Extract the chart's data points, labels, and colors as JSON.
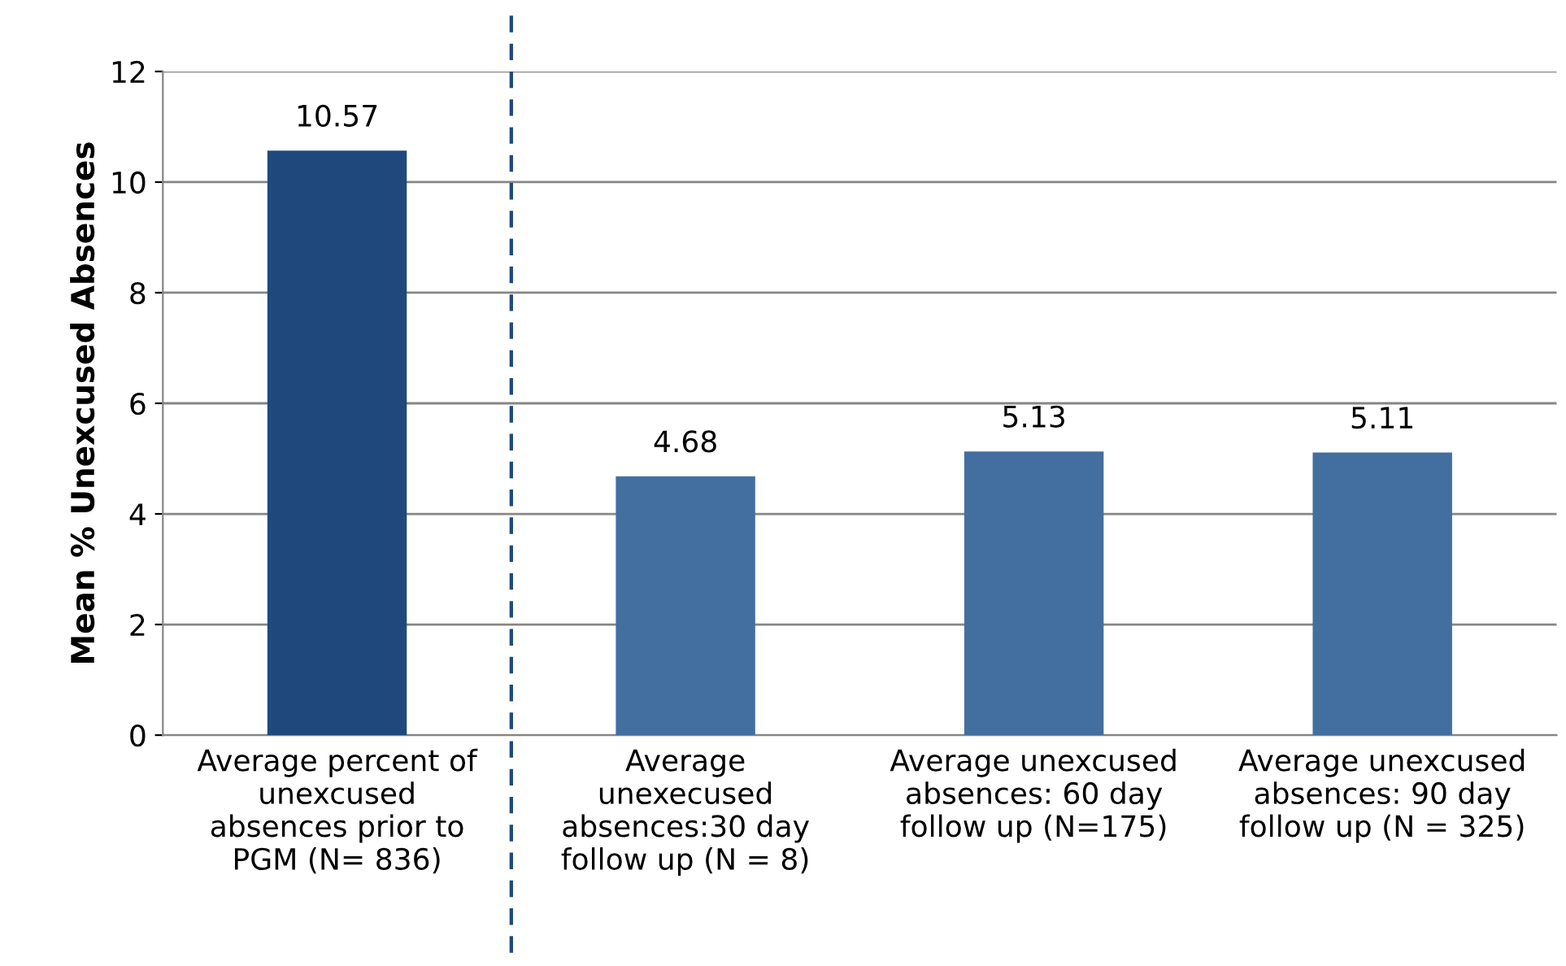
{
  "chart_data": {
    "type": "bar",
    "ylabel": "Mean % Unexcused Absences",
    "categories": [
      "Average percent of\nunexcused\nabsences prior to\nPGM (N= 836)",
      "Average\nunexecused\nabsences:30 day\nfollow up (N = 8)",
      "Average unexcused\nabsences: 60 day\nfollow up (N=175)",
      "Average unexcused\nabsences: 90 day\nfollow up (N = 325)"
    ],
    "values": [
      10.57,
      4.68,
      5.13,
      5.11
    ],
    "colors": [
      "#1f497d",
      "#426fa0",
      "#426fa0",
      "#426fa0"
    ],
    "data_labels": true,
    "ylim": [
      0,
      12
    ],
    "yticks": [
      0,
      2,
      4,
      6,
      8,
      10,
      12
    ],
    "grid": "y"
  }
}
